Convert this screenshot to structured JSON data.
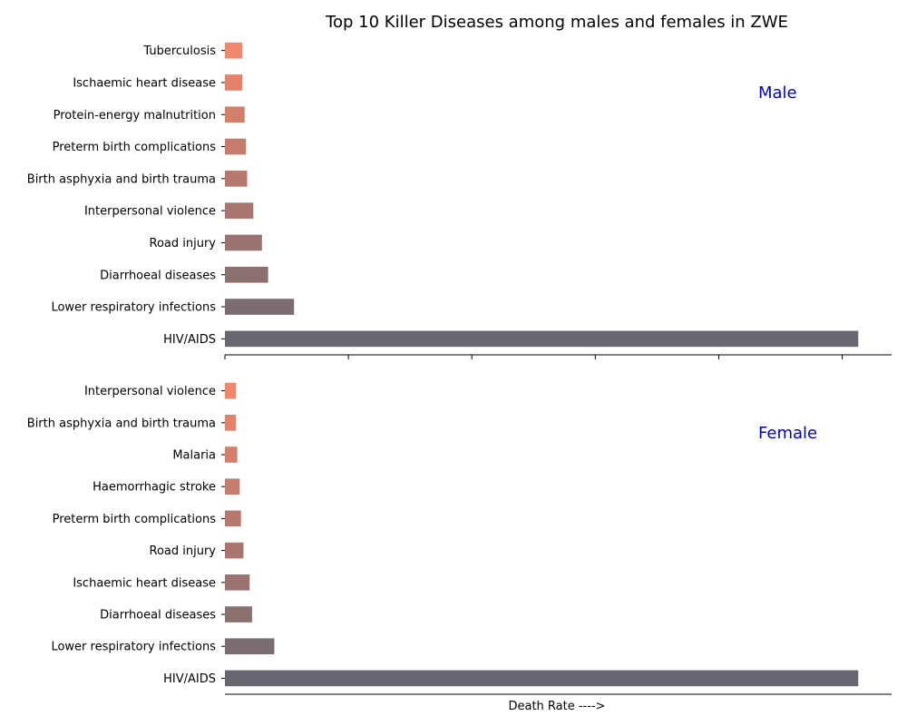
{
  "chart_data": {
    "type": "bar",
    "orientation": "horizontal",
    "title": "Top 10 Killer Diseases among males and females in ZWE",
    "xlabel": "Death Rate ---->",
    "x_tick_labels_shown": false,
    "xlim": [
      0,
      540
    ],
    "grid": false,
    "bar_colors": [
      "#686670",
      "#7a6c70",
      "#8a7170",
      "#9a7370",
      "#a8766f",
      "#b7796e",
      "#c57c6d",
      "#d47f6c",
      "#e3836b",
      "#f0866a"
    ],
    "panels": [
      {
        "label": "Male",
        "label_color": "#0000cc",
        "categories": [
          "HIV/AIDS",
          "Lower respiratory infections",
          "Diarrhoeal diseases",
          "Road injury",
          "Interpersonal violence",
          "Birth asphyxia and birth trauma",
          "Preterm birth complications",
          "Protein-energy malnutrition",
          "Ischaemic heart disease",
          "Tuberculosis"
        ],
        "values": [
          513,
          56,
          35,
          30,
          23,
          18,
          17,
          16,
          14,
          14
        ]
      },
      {
        "label": "Female",
        "label_color": "#0000cc",
        "categories": [
          "HIV/AIDS",
          "Lower respiratory infections",
          "Diarrhoeal diseases",
          "Ischaemic heart disease",
          "Road injury",
          "Preterm birth complications",
          "Haemorrhagic stroke",
          "Malaria",
          "Birth asphyxia and birth trauma",
          "Interpersonal violence"
        ],
        "values": [
          513,
          40,
          22,
          20,
          15,
          13,
          12,
          10,
          9,
          9
        ]
      }
    ]
  }
}
